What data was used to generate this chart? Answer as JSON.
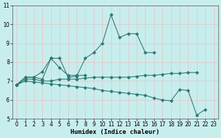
{
  "xlabel": "Humidex (Indice chaleur)",
  "x": [
    0,
    1,
    2,
    3,
    4,
    5,
    6,
    7,
    8,
    9,
    10,
    11,
    12,
    13,
    14,
    15,
    16,
    17,
    18,
    19,
    20,
    21,
    22,
    23
  ],
  "series": [
    {
      "y": [
        6.8,
        7.2,
        7.2,
        7.5,
        8.2,
        7.7,
        7.3,
        7.3,
        7.3,
        null,
        null,
        null,
        null,
        null,
        null,
        null,
        null,
        null,
        null,
        null,
        null,
        null,
        null,
        null
      ]
    },
    {
      "y": [
        6.8,
        7.2,
        7.2,
        7.1,
        8.2,
        8.2,
        7.2,
        7.25,
        8.2,
        8.5,
        9.0,
        10.5,
        9.3,
        9.5,
        9.5,
        8.5,
        8.5,
        null,
        null,
        null,
        null,
        null,
        null,
        null
      ]
    },
    {
      "y": [
        6.8,
        7.1,
        7.1,
        7.0,
        7.0,
        7.1,
        7.1,
        7.1,
        7.15,
        7.2,
        7.2,
        7.2,
        7.2,
        7.2,
        7.25,
        7.3,
        7.3,
        7.35,
        7.4,
        7.4,
        7.45,
        7.45,
        null,
        null
      ]
    },
    {
      "y": [
        6.8,
        7.0,
        6.95,
        6.9,
        6.85,
        6.8,
        6.75,
        6.7,
        6.65,
        6.6,
        6.5,
        6.45,
        6.4,
        6.35,
        6.3,
        6.25,
        6.1,
        6.0,
        5.95,
        6.55,
        6.5,
        5.2,
        5.5,
        null
      ]
    }
  ],
  "color": "#2a7a72",
  "marker": "D",
  "markersize": 2.5,
  "linewidth": 0.8,
  "bg_color": "#c8eded",
  "grid_color": "#e0c8c8",
  "ylim": [
    5,
    11
  ],
  "xlim_min": -0.5,
  "xlim_max": 23.5,
  "yticks": [
    5,
    6,
    7,
    8,
    9,
    10,
    11
  ],
  "xticks": [
    0,
    1,
    2,
    3,
    4,
    5,
    6,
    7,
    8,
    9,
    10,
    11,
    12,
    13,
    14,
    15,
    16,
    17,
    18,
    19,
    20,
    21,
    22,
    23
  ],
  "tick_fontsize": 5.5,
  "xlabel_fontsize": 6.5
}
